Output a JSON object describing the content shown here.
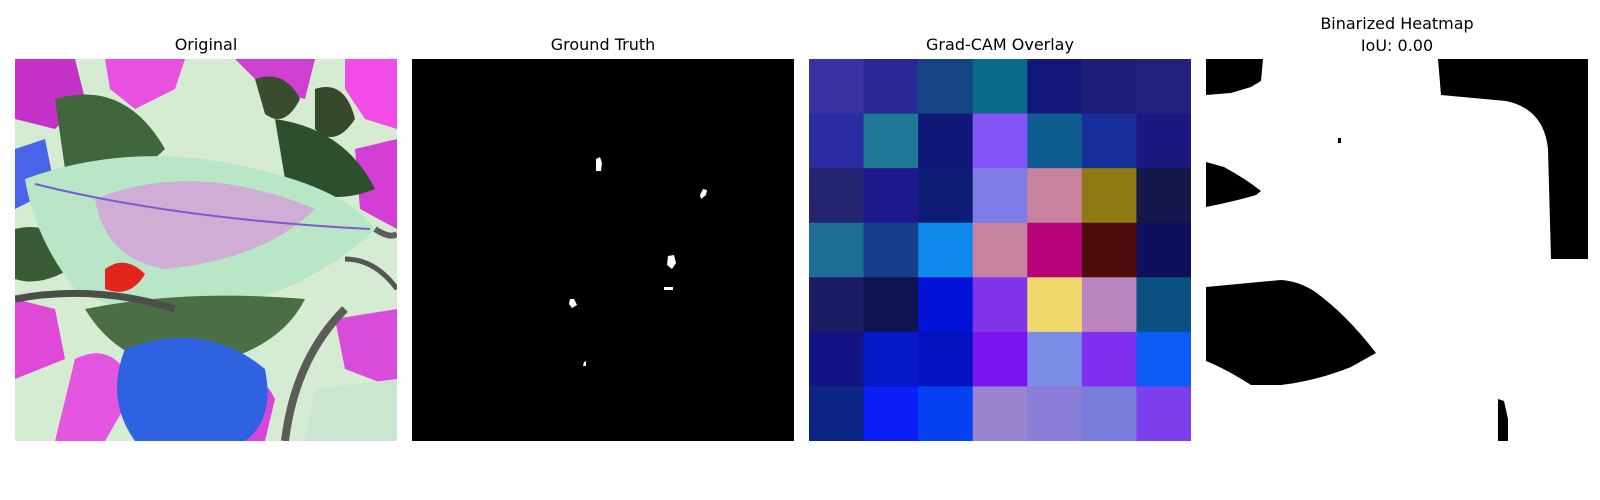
{
  "figure": {
    "panels": [
      {
        "title": "Original",
        "image": "leaf-photo"
      },
      {
        "title": "Ground Truth",
        "image": "binary-mask"
      },
      {
        "title": "Grad-CAM Overlay",
        "image": "heatmap-grid"
      },
      {
        "title": "Binarized Heatmap",
        "subtitle": "IoU: 0.00",
        "image": "binarized-mask"
      }
    ]
  },
  "gradcam_grid": [
    [
      "#3a32a0",
      "#2a2896",
      "#174486",
      "#0b6a86",
      "#13177a",
      "#1f1d7a",
      "#24217e"
    ],
    [
      "#2c2ca2",
      "#1e7896",
      "#0f1876",
      "#8256f6",
      "#0e5c90",
      "#182f9a",
      "#1b1980"
    ],
    [
      "#242470",
      "#1d188c",
      "#0c1c74",
      "#7e7ce6",
      "#c8829e",
      "#8e7a12",
      "#15174a"
    ],
    [
      "#1f6c96",
      "#163e8a",
      "#1088ec",
      "#c7829e",
      "#b8027a",
      "#4e0c0c",
      "#0e0f5c"
    ],
    [
      "#1c1d64",
      "#0e1450",
      "#0411d6",
      "#8034ea",
      "#f0d86a",
      "#bb86c0",
      "#0a5182"
    ],
    [
      "#121484",
      "#0618c8",
      "#0311c0",
      "#7c14f0",
      "#7a8ee8",
      "#7e30ee",
      "#0c5cf8"
    ],
    [
      "#0c2484",
      "#0c1ff8",
      "#0642f2",
      "#9a84d0",
      "#8a7ed8",
      "#7a7cdc",
      "#7c40ec"
    ]
  ],
  "colors": {
    "mask_foreground": "#ffffff",
    "mask_background": "#000000"
  }
}
